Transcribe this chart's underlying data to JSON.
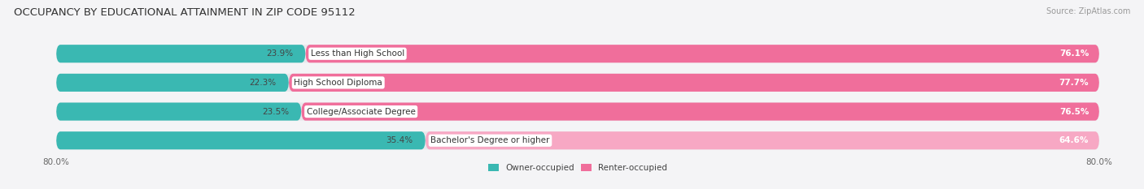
{
  "title": "OCCUPANCY BY EDUCATIONAL ATTAINMENT IN ZIP CODE 95112",
  "source": "Source: ZipAtlas.com",
  "categories": [
    "Less than High School",
    "High School Diploma",
    "College/Associate Degree",
    "Bachelor's Degree or higher"
  ],
  "owner_values": [
    23.9,
    22.3,
    23.5,
    35.4
  ],
  "renter_values": [
    76.1,
    77.7,
    76.5,
    64.6
  ],
  "owner_color": "#3ab8b2",
  "renter_colors": [
    "#f06e9b",
    "#f06e9b",
    "#f06e9b",
    "#f7a8c4"
  ],
  "bg_bar_color": "#e8e8ec",
  "background_color": "#f4f4f6",
  "legend_owner": "Owner-occupied",
  "legend_renter": "Renter-occupied",
  "legend_renter_color": "#f06e9b",
  "title_fontsize": 9.5,
  "label_fontsize": 7.5,
  "tick_fontsize": 7.5,
  "source_fontsize": 7,
  "xlim": 100.0,
  "bar_total": 100.0
}
